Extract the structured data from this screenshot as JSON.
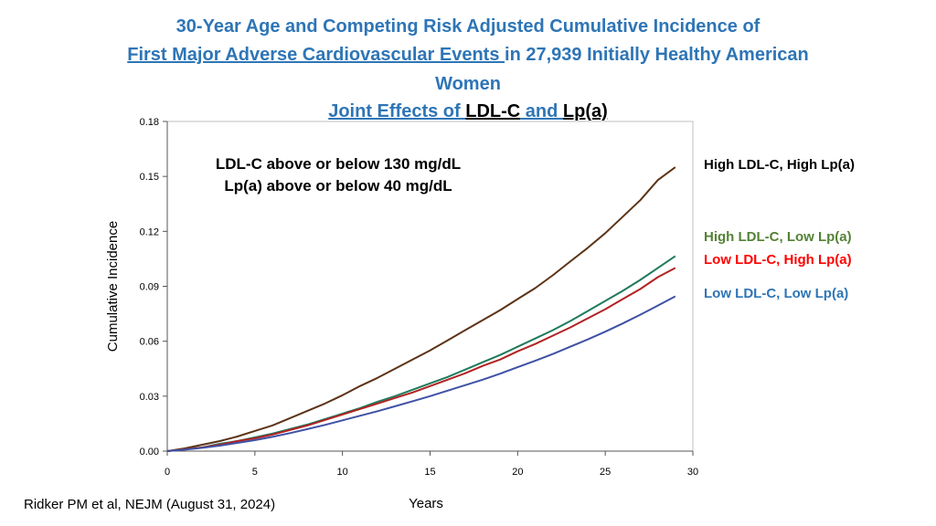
{
  "slide": {
    "title_line1": "30-Year Age and Competing Risk Adjusted Cumulative Incidence of",
    "title_line2_link": "First Major Adverse Cardiovascular Events ",
    "title_line2_rest": "in 27,939 Initially Healthy American",
    "title_line3": "Women",
    "subtitle_part1": "Joint Effects of ",
    "subtitle_part2": "LDL-C",
    "subtitle_part3": " and ",
    "subtitle_part4": "Lp(a)",
    "legend_note_line1": "LDL-C above or below 130 mg/dL",
    "legend_note_line2": "Lp(a) above or below 40 mg/dL",
    "citation": "Ridker PM et al, NEJM (August 31, 2024)",
    "colors": {
      "title": "#2E75B6"
    }
  },
  "chart_data": {
    "type": "line",
    "title": "",
    "xlabel": "Years",
    "ylabel": "Cumulative Incidence",
    "xlim": [
      0,
      30
    ],
    "ylim": [
      0,
      0.18
    ],
    "xticks": [
      "0",
      "5",
      "10",
      "15",
      "20",
      "25",
      "30"
    ],
    "yticks": [
      "0.00",
      "0.03",
      "0.06",
      "0.09",
      "0.12",
      "0.15",
      "0.18"
    ],
    "x": [
      0,
      1,
      2,
      3,
      4,
      5,
      6,
      7,
      8,
      9,
      10,
      11,
      12,
      13,
      14,
      15,
      16,
      17,
      18,
      19,
      20,
      21,
      22,
      23,
      24,
      25,
      26,
      27,
      28,
      29
    ],
    "series": [
      {
        "name": "High LDL-C, High Lp(a)",
        "color": "#5C3317",
        "label_color": "#000000",
        "values": [
          0,
          0.0015,
          0.0035,
          0.0055,
          0.008,
          0.011,
          0.014,
          0.018,
          0.022,
          0.026,
          0.0305,
          0.0355,
          0.04,
          0.045,
          0.05,
          0.055,
          0.0605,
          0.066,
          0.0715,
          0.077,
          0.083,
          0.089,
          0.096,
          0.1035,
          0.111,
          0.119,
          0.128,
          0.137,
          0.148,
          0.155
        ]
      },
      {
        "name": "High LDL-C, Low Lp(a)",
        "color": "#1F7A5C",
        "label_color": "#548235",
        "values": [
          0,
          0.001,
          0.002,
          0.004,
          0.0055,
          0.0075,
          0.0095,
          0.012,
          0.0145,
          0.0175,
          0.0205,
          0.0235,
          0.027,
          0.03,
          0.0335,
          0.037,
          0.0405,
          0.0445,
          0.0485,
          0.0525,
          0.057,
          0.0615,
          0.066,
          0.071,
          0.0765,
          0.082,
          0.0875,
          0.0935,
          0.1,
          0.1065
        ]
      },
      {
        "name": "Low LDL-C, High Lp(a)",
        "color": "#B22222",
        "label_color": "#FF0000",
        "values": [
          0,
          0.001,
          0.002,
          0.0035,
          0.0055,
          0.007,
          0.009,
          0.0115,
          0.014,
          0.017,
          0.02,
          0.023,
          0.026,
          0.029,
          0.032,
          0.0355,
          0.039,
          0.0425,
          0.0465,
          0.05,
          0.0545,
          0.0585,
          0.063,
          0.0675,
          0.0725,
          0.0775,
          0.083,
          0.0885,
          0.095,
          0.1
        ]
      },
      {
        "name": "Low LDL-C, Low Lp(a)",
        "color": "#3F51A5",
        "label_color": "#2E75B6",
        "values": [
          0,
          0.0008,
          0.0018,
          0.003,
          0.0045,
          0.006,
          0.0078,
          0.0098,
          0.012,
          0.0143,
          0.0168,
          0.0193,
          0.0218,
          0.0245,
          0.0272,
          0.03,
          0.033,
          0.036,
          0.039,
          0.0423,
          0.0458,
          0.0493,
          0.053,
          0.057,
          0.061,
          0.0652,
          0.0697,
          0.0745,
          0.0795,
          0.0845
        ]
      }
    ]
  }
}
